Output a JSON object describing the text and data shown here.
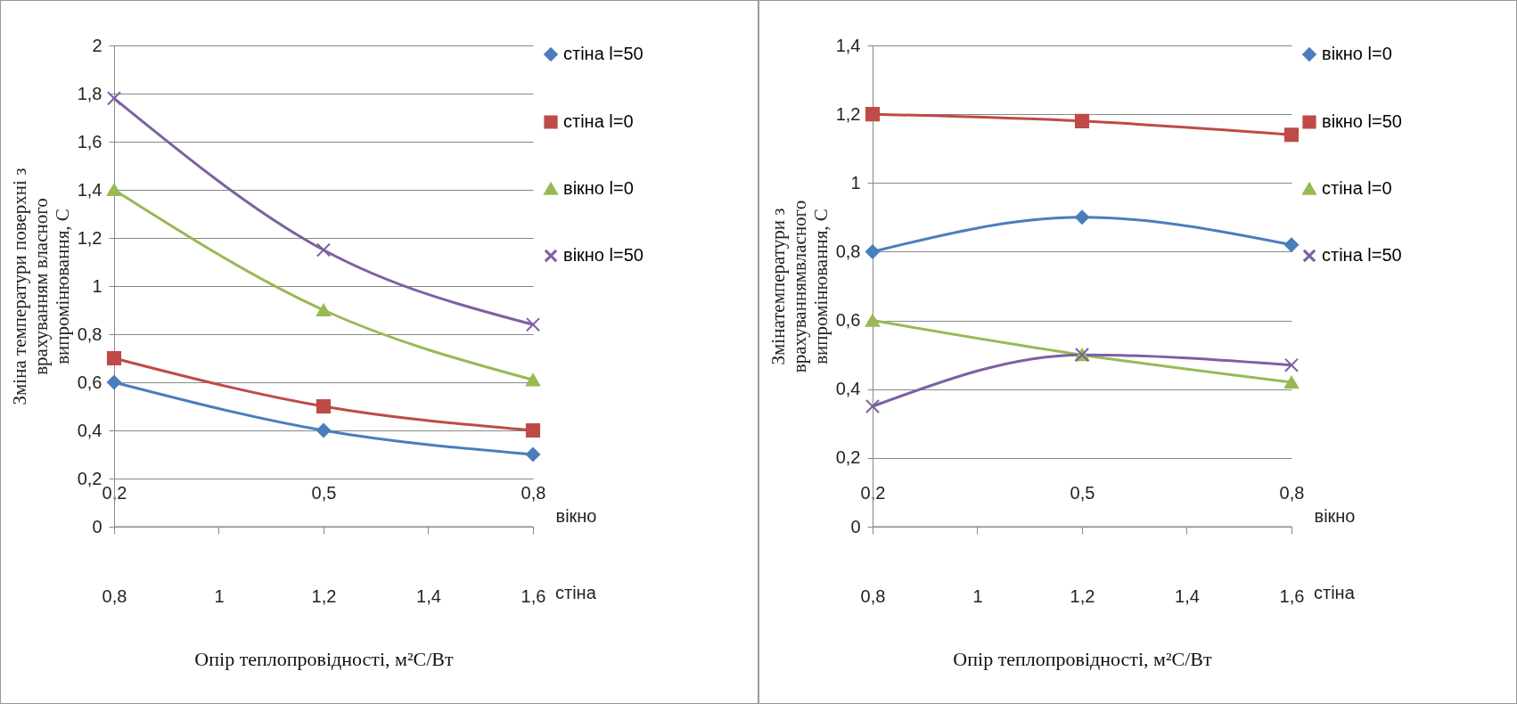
{
  "chart_data": [
    {
      "type": "line",
      "ylabel": "Зміна  температури  поверхні  з\nврахуванням  власного\nвипромінювання, С",
      "xlabel": "Опір теплопровідності, м²C/Вт",
      "x2label": "вікно",
      "annotations": [
        "стіна"
      ],
      "x": [
        0.8,
        1.2,
        1.6
      ],
      "xlim": [
        0.8,
        1.6
      ],
      "xticks": [
        {
          "value": 0.8,
          "label": "0,8"
        },
        1,
        {
          "value": 1.2,
          "label": "1,2"
        },
        {
          "value": 1.4,
          "label": "1,4"
        },
        {
          "value": 1.6,
          "label": "1,6"
        }
      ],
      "x2lim": [
        0.2,
        0.8
      ],
      "x2ticks": [
        {
          "value": 0.2,
          "label": "0,2"
        },
        {
          "value": 0.5,
          "label": "0,5"
        },
        {
          "value": 0.8,
          "label": "0,8"
        }
      ],
      "ylim": [
        0,
        2
      ],
      "yticks": [
        0,
        {
          "value": 0.2,
          "label": "0,2"
        },
        {
          "value": 0.4,
          "label": "0,4"
        },
        {
          "value": 0.6,
          "label": "0,6"
        },
        {
          "value": 0.8,
          "label": "0,8"
        },
        1,
        {
          "value": 1.2,
          "label": "1,2"
        },
        {
          "value": 1.4,
          "label": "1,4"
        },
        {
          "value": 1.6,
          "label": "1,6"
        },
        {
          "value": 1.8,
          "label": "1,8"
        },
        2
      ],
      "grid": "y",
      "legend": "right",
      "series": [
        {
          "name": "стіна  l=50",
          "color": "#4a7ebb",
          "marker": "diamond",
          "values": [
            0.6,
            0.4,
            0.3
          ]
        },
        {
          "name": "стіна  l=0",
          "color": "#be4b48",
          "marker": "square",
          "values": [
            0.7,
            0.5,
            0.4
          ]
        },
        {
          "name": "вікно l=0",
          "color": "#98b954",
          "marker": "triangle",
          "values": [
            1.4,
            0.9,
            0.61
          ]
        },
        {
          "name": "вікно l=50",
          "color": "#7d60a0",
          "marker": "cross",
          "values": [
            1.78,
            1.15,
            0.84
          ]
        }
      ]
    },
    {
      "type": "line",
      "ylabel": "Змінатемператури з\nврахуваннямвласного\nвипромінювання, С",
      "xlabel": "Опір теплопровідності, м²C/Вт",
      "x2label": "вікно",
      "annotations": [
        "стіна"
      ],
      "x": [
        0.8,
        1.2,
        1.6
      ],
      "xlim": [
        0.8,
        1.6
      ],
      "xticks": [
        {
          "value": 0.8,
          "label": "0,8"
        },
        1,
        {
          "value": 1.2,
          "label": "1,2"
        },
        {
          "value": 1.4,
          "label": "1,4"
        },
        {
          "value": 1.6,
          "label": "1,6"
        }
      ],
      "x2lim": [
        0.2,
        0.8
      ],
      "x2ticks": [
        {
          "value": 0.2,
          "label": "0,2"
        },
        {
          "value": 0.5,
          "label": "0,5"
        },
        {
          "value": 0.8,
          "label": "0,8"
        }
      ],
      "ylim": [
        0,
        1.4
      ],
      "yticks": [
        0,
        {
          "value": 0.2,
          "label": "0,2"
        },
        {
          "value": 0.4,
          "label": "0,4"
        },
        {
          "value": 0.6,
          "label": "0,6"
        },
        {
          "value": 0.8,
          "label": "0,8"
        },
        1,
        {
          "value": 1.2,
          "label": "1,2"
        },
        {
          "value": 1.4,
          "label": "1,4"
        }
      ],
      "grid": "y",
      "legend": "right",
      "series": [
        {
          "name": "вікно l=0",
          "color": "#4a7ebb",
          "marker": "diamond",
          "values": [
            0.8,
            0.9,
            0.82
          ]
        },
        {
          "name": "вікно l=50",
          "color": "#be4b48",
          "marker": "square",
          "values": [
            1.2,
            1.18,
            1.14
          ]
        },
        {
          "name": "стіна l=0",
          "color": "#98b954",
          "marker": "triangle",
          "values": [
            0.6,
            0.5,
            0.42
          ]
        },
        {
          "name": "стіна l=50",
          "color": "#7d60a0",
          "marker": "cross",
          "values": [
            0.35,
            0.5,
            0.47
          ]
        }
      ]
    }
  ]
}
